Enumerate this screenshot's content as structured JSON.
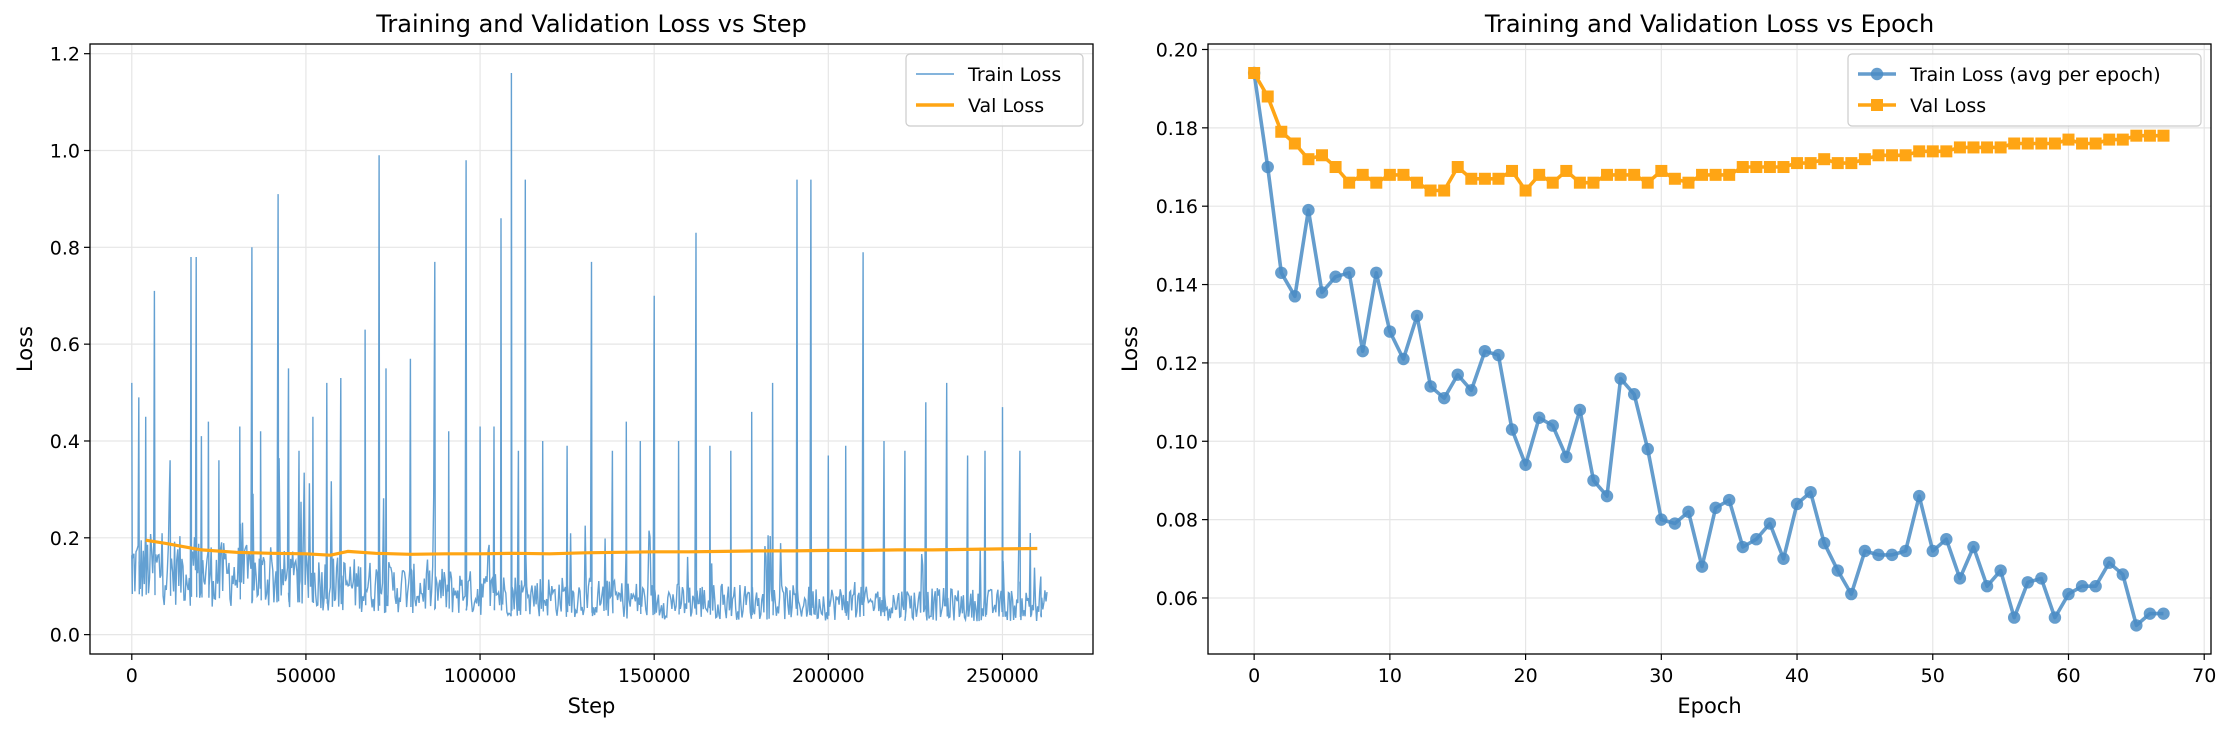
{
  "chart_data": [
    {
      "type": "line",
      "title": "Training and Validation Loss vs Step",
      "xlabel": "Step",
      "ylabel": "Loss",
      "xlim": [
        -12000,
        276000
      ],
      "ylim": [
        -0.04,
        1.22
      ],
      "xticks": [
        0,
        50000,
        100000,
        150000,
        200000,
        250000
      ],
      "xtick_labels": [
        "0",
        "50000",
        "100000",
        "150000",
        "200000",
        "250000"
      ],
      "yticks": [
        0.0,
        0.2,
        0.4,
        0.6,
        0.8,
        1.0,
        1.2
      ],
      "ytick_labels": [
        "0.0",
        "0.2",
        "0.4",
        "0.6",
        "0.8",
        "1.0",
        "1.2"
      ],
      "grid": true,
      "legend_position": "top-right",
      "series": [
        {
          "name": "Train Loss",
          "color": "#5b9bd0",
          "style": "thin-line",
          "baseline": [
            [
              0,
              0.14
            ],
            [
              50000,
              0.11
            ],
            [
              100000,
              0.085
            ],
            [
              150000,
              0.07
            ],
            [
              200000,
              0.065
            ],
            [
              263000,
              0.06
            ]
          ],
          "spikes": [
            [
              0,
              0.52
            ],
            [
              2000,
              0.49
            ],
            [
              4000,
              0.45
            ],
            [
              6500,
              0.71
            ],
            [
              11000,
              0.36
            ],
            [
              17000,
              0.78
            ],
            [
              18500,
              0.78
            ],
            [
              20000,
              0.41
            ],
            [
              22000,
              0.44
            ],
            [
              25000,
              0.36
            ],
            [
              31000,
              0.43
            ],
            [
              34500,
              0.8
            ],
            [
              37000,
              0.42
            ],
            [
              42000,
              0.91
            ],
            [
              45000,
              0.55
            ],
            [
              48000,
              0.38
            ],
            [
              52000,
              0.45
            ],
            [
              56000,
              0.52
            ],
            [
              60000,
              0.53
            ],
            [
              67000,
              0.63
            ],
            [
              71000,
              0.99
            ],
            [
              73000,
              0.55
            ],
            [
              80000,
              0.57
            ],
            [
              87000,
              0.77
            ],
            [
              91000,
              0.42
            ],
            [
              96000,
              0.98
            ],
            [
              100000,
              0.43
            ],
            [
              104000,
              0.43
            ],
            [
              106000,
              0.86
            ],
            [
              109000,
              1.16
            ],
            [
              111000,
              0.38
            ],
            [
              113000,
              0.94
            ],
            [
              118000,
              0.4
            ],
            [
              125000,
              0.39
            ],
            [
              132000,
              0.77
            ],
            [
              138000,
              0.38
            ],
            [
              142000,
              0.44
            ],
            [
              146000,
              0.4
            ],
            [
              150000,
              0.7
            ],
            [
              157000,
              0.4
            ],
            [
              162000,
              0.83
            ],
            [
              166000,
              0.39
            ],
            [
              172000,
              0.38
            ],
            [
              178000,
              0.46
            ],
            [
              184000,
              0.52
            ],
            [
              191000,
              0.94
            ],
            [
              195000,
              0.94
            ],
            [
              200000,
              0.37
            ],
            [
              205000,
              0.39
            ],
            [
              210000,
              0.79
            ],
            [
              216000,
              0.4
            ],
            [
              222000,
              0.38
            ],
            [
              228000,
              0.48
            ],
            [
              234000,
              0.52
            ],
            [
              240000,
              0.37
            ],
            [
              245000,
              0.38
            ],
            [
              250000,
              0.47
            ],
            [
              255000,
              0.38
            ],
            [
              258000,
              0.21
            ],
            [
              261000,
              0.12
            ]
          ]
        },
        {
          "name": "Val Loss",
          "color": "#ffa514",
          "style": "line",
          "x": [
            4000,
            10000,
            20000,
            30000,
            40000,
            50000,
            57000,
            62000,
            70000,
            80000,
            90000,
            100000,
            110000,
            120000,
            130000,
            140000,
            150000,
            160000,
            170000,
            180000,
            190000,
            200000,
            210000,
            220000,
            230000,
            240000,
            250000,
            260000
          ],
          "y": [
            0.195,
            0.188,
            0.175,
            0.17,
            0.168,
            0.167,
            0.164,
            0.172,
            0.168,
            0.166,
            0.167,
            0.167,
            0.168,
            0.167,
            0.169,
            0.17,
            0.171,
            0.171,
            0.172,
            0.173,
            0.173,
            0.174,
            0.174,
            0.175,
            0.175,
            0.176,
            0.177,
            0.178
          ]
        }
      ]
    },
    {
      "type": "line",
      "title": "Training and Validation Loss vs Epoch",
      "xlabel": "Epoch",
      "ylabel": "Loss",
      "xlim": [
        -3.4,
        70.5
      ],
      "ylim": [
        0.0457,
        0.2014
      ],
      "xticks": [
        0,
        10,
        20,
        30,
        40,
        50,
        60,
        70
      ],
      "xtick_labels": [
        "0",
        "10",
        "20",
        "30",
        "40",
        "50",
        "60",
        "70"
      ],
      "yticks": [
        0.06,
        0.08,
        0.1,
        0.12,
        0.14,
        0.16,
        0.18,
        0.2
      ],
      "ytick_labels": [
        "0.06",
        "0.08",
        "0.10",
        "0.12",
        "0.14",
        "0.16",
        "0.18",
        "0.20"
      ],
      "grid": true,
      "legend_position": "top-right",
      "series": [
        {
          "name": "Train Loss (avg per epoch)",
          "color": "#4a8cc4",
          "marker": "circle",
          "x": [
            0,
            1,
            2,
            3,
            4,
            5,
            6,
            7,
            8,
            9,
            10,
            11,
            12,
            13,
            14,
            15,
            16,
            17,
            18,
            19,
            20,
            21,
            22,
            23,
            24,
            25,
            26,
            27,
            28,
            29,
            30,
            31,
            32,
            33,
            34,
            35,
            36,
            37,
            38,
            39,
            40,
            41,
            42,
            43,
            44,
            45,
            46,
            47,
            48,
            49,
            50,
            51,
            52,
            53,
            54,
            55,
            56,
            57,
            58,
            59,
            60,
            61,
            62,
            63,
            64,
            65,
            66,
            67
          ],
          "y": [
            0.194,
            0.17,
            0.143,
            0.137,
            0.159,
            0.138,
            0.142,
            0.143,
            0.123,
            0.143,
            0.128,
            0.121,
            0.132,
            0.114,
            0.111,
            0.117,
            0.113,
            0.123,
            0.122,
            0.103,
            0.094,
            0.106,
            0.104,
            0.096,
            0.108,
            0.09,
            0.086,
            0.116,
            0.112,
            0.098,
            0.08,
            0.079,
            0.082,
            0.068,
            0.083,
            0.085,
            0.073,
            0.075,
            0.079,
            0.07,
            0.084,
            0.087,
            0.074,
            0.067,
            0.061,
            0.072,
            0.071,
            0.071,
            0.072,
            0.086,
            0.072,
            0.075,
            0.065,
            0.073,
            0.063,
            0.067,
            0.055,
            0.064,
            0.065,
            0.055,
            0.061,
            0.063,
            0.063,
            0.069,
            0.066,
            0.053,
            0.056,
            0.056
          ]
        },
        {
          "name": "Val Loss",
          "color": "#ffa514",
          "marker": "square",
          "x": [
            0,
            1,
            2,
            3,
            4,
            5,
            6,
            7,
            8,
            9,
            10,
            11,
            12,
            13,
            14,
            15,
            16,
            17,
            18,
            19,
            20,
            21,
            22,
            23,
            24,
            25,
            26,
            27,
            28,
            29,
            30,
            31,
            32,
            33,
            34,
            35,
            36,
            37,
            38,
            39,
            40,
            41,
            42,
            43,
            44,
            45,
            46,
            47,
            48,
            49,
            50,
            51,
            52,
            53,
            54,
            55,
            56,
            57,
            58,
            59,
            60,
            61,
            62,
            63,
            64,
            65,
            66,
            67
          ],
          "y": [
            0.194,
            0.188,
            0.179,
            0.176,
            0.172,
            0.173,
            0.17,
            0.166,
            0.168,
            0.166,
            0.168,
            0.168,
            0.166,
            0.164,
            0.164,
            0.17,
            0.167,
            0.167,
            0.167,
            0.169,
            0.164,
            0.168,
            0.166,
            0.169,
            0.166,
            0.166,
            0.168,
            0.168,
            0.168,
            0.166,
            0.169,
            0.167,
            0.166,
            0.168,
            0.168,
            0.168,
            0.17,
            0.17,
            0.17,
            0.17,
            0.171,
            0.171,
            0.172,
            0.171,
            0.171,
            0.172,
            0.173,
            0.173,
            0.173,
            0.174,
            0.174,
            0.174,
            0.175,
            0.175,
            0.175,
            0.175,
            0.176,
            0.176,
            0.176,
            0.176,
            0.177,
            0.176,
            0.176,
            0.177,
            0.177,
            0.178,
            0.178,
            0.178
          ]
        }
      ]
    }
  ]
}
